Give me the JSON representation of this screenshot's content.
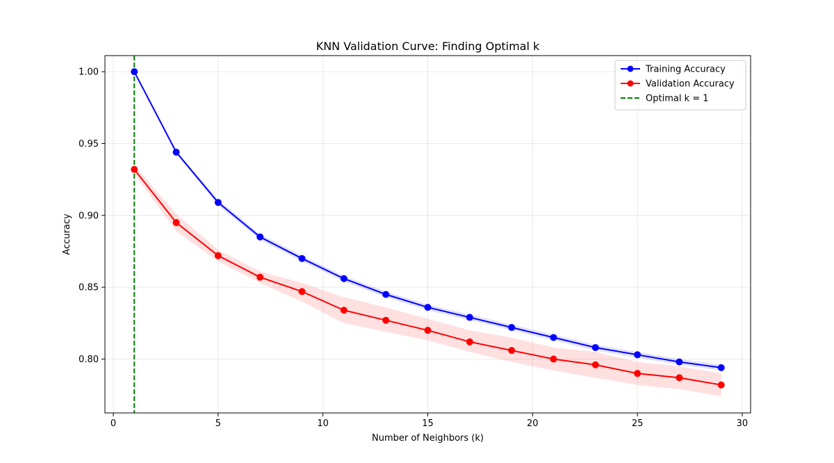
{
  "chart_data": {
    "type": "line",
    "title": "KNN Validation Curve: Finding Optimal k",
    "xlabel": "Number of Neighbors (k)",
    "ylabel": "Accuracy",
    "xlim": [
      -0.4,
      30.4
    ],
    "ylim": [
      0.7625,
      1.0112
    ],
    "x_ticks": [
      0,
      5,
      10,
      15,
      20,
      25,
      30
    ],
    "x_tick_labels": [
      "0",
      "5",
      "10",
      "15",
      "20",
      "25",
      "30"
    ],
    "y_ticks": [
      0.8,
      0.85,
      0.9,
      0.95,
      1.0
    ],
    "y_tick_labels": [
      "0.80",
      "0.85",
      "0.90",
      "0.95",
      "1.00"
    ],
    "grid": true,
    "legend_position": "top-right",
    "x": [
      1,
      3,
      5,
      7,
      9,
      11,
      13,
      15,
      17,
      19,
      21,
      23,
      25,
      27,
      29
    ],
    "series": [
      {
        "name": "Training Accuracy",
        "color": "#0000ff",
        "band_color": "#0000ff",
        "values": [
          1.0,
          0.944,
          0.909,
          0.885,
          0.87,
          0.856,
          0.845,
          0.836,
          0.829,
          0.822,
          0.815,
          0.808,
          0.803,
          0.798,
          0.794
        ],
        "band_lower": [
          1.0,
          0.943,
          0.907,
          0.883,
          0.868,
          0.854,
          0.843,
          0.834,
          0.827,
          0.82,
          0.813,
          0.806,
          0.801,
          0.796,
          0.792
        ],
        "band_upper": [
          1.0,
          0.945,
          0.911,
          0.887,
          0.872,
          0.858,
          0.847,
          0.838,
          0.831,
          0.824,
          0.817,
          0.81,
          0.805,
          0.8,
          0.796
        ]
      },
      {
        "name": "Validation Accuracy",
        "color": "#ff0000",
        "band_color": "#ff0000",
        "values": [
          0.932,
          0.895,
          0.872,
          0.857,
          0.847,
          0.834,
          0.827,
          0.82,
          0.812,
          0.806,
          0.8,
          0.796,
          0.79,
          0.787,
          0.782
        ],
        "band_lower": [
          0.929,
          0.889,
          0.868,
          0.853,
          0.84,
          0.825,
          0.819,
          0.813,
          0.805,
          0.798,
          0.792,
          0.787,
          0.782,
          0.779,
          0.774
        ],
        "band_upper": [
          0.935,
          0.901,
          0.876,
          0.861,
          0.853,
          0.843,
          0.836,
          0.828,
          0.82,
          0.815,
          0.808,
          0.805,
          0.798,
          0.795,
          0.79
        ]
      }
    ],
    "reference_lines": [
      {
        "name": "Optimal k = 1",
        "orientation": "vertical",
        "x": 1,
        "color": "#008000",
        "style": "dashed"
      }
    ]
  }
}
